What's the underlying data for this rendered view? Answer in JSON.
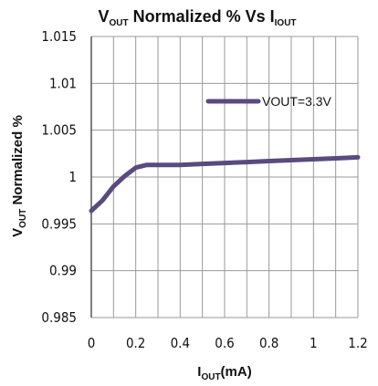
{
  "chart_data": {
    "type": "line",
    "title": {
      "main1": "V",
      "sub1": "OUT",
      "main2": " Normalized % Vs I",
      "sub2": "IOUT"
    },
    "xlabel": {
      "main": "I",
      "sub": "OUT",
      "rest": "(mA)"
    },
    "ylabel": {
      "main": "V",
      "sub": "OUT",
      "rest": " Normalized %"
    },
    "xlim": [
      0,
      1.2
    ],
    "ylim": [
      0.985,
      1.015
    ],
    "x_ticks": [
      "0",
      "0.2",
      "0.4",
      "0.6",
      "0.8",
      "1",
      "1.2"
    ],
    "y_ticks": [
      "0.985",
      "0.99",
      "0.995",
      "1",
      "1.005",
      "1.01",
      "1.015"
    ],
    "grid": true,
    "legend_position": "top-right",
    "series": [
      {
        "name": "VOUT=3.3V",
        "color": "#5a4a7e",
        "x": [
          0,
          0.05,
          0.1,
          0.15,
          0.2,
          0.25,
          0.3,
          0.4,
          0.5,
          0.6,
          0.7,
          0.8,
          0.9,
          1.0,
          1.1,
          1.2
        ],
        "y": [
          0.9964,
          0.9975,
          0.999,
          1.0001,
          1.001,
          1.0013,
          1.0013,
          1.0013,
          1.0014,
          1.0015,
          1.0016,
          1.0017,
          1.0018,
          1.0019,
          1.002,
          1.0021
        ]
      }
    ]
  }
}
